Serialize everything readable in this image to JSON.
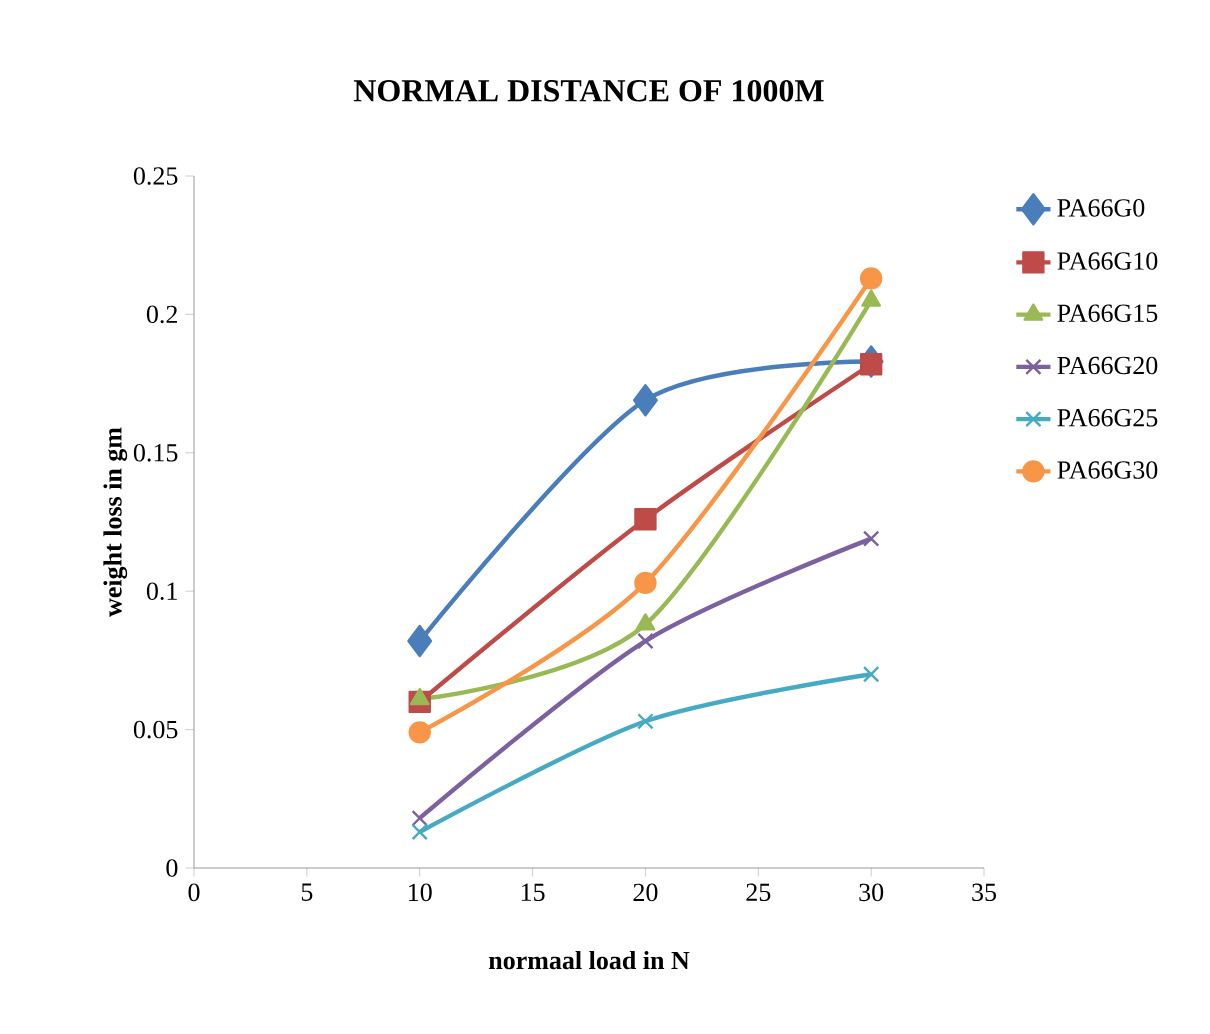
{
  "chart_data": {
    "type": "line",
    "title": "NORMAL  DISTANCE OF 1000M",
    "xlabel": "normaal load in N",
    "ylabel": "weight loss in gm",
    "x": [
      10,
      20,
      30
    ],
    "series": [
      {
        "name": "PA66G0",
        "color": "#4a7ebb",
        "marker": "diamond",
        "values": [
          0.082,
          0.169,
          0.183
        ]
      },
      {
        "name": "PA66G10",
        "color": "#be4b48",
        "marker": "square",
        "values": [
          0.06,
          0.126,
          0.182
        ]
      },
      {
        "name": "PA66G15",
        "color": "#98b954",
        "marker": "triangle",
        "values": [
          0.061,
          0.088,
          0.205
        ]
      },
      {
        "name": "PA66G20",
        "color": "#7d60a0",
        "marker": "cross",
        "values": [
          0.018,
          0.082,
          0.119
        ]
      },
      {
        "name": "PA66G25",
        "color": "#46aac5",
        "marker": "cross",
        "values": [
          0.013,
          0.053,
          0.07
        ]
      },
      {
        "name": "PA66G30",
        "color": "#f79646",
        "marker": "circle",
        "values": [
          0.049,
          0.103,
          0.213
        ]
      }
    ],
    "xlim": [
      0,
      35
    ],
    "xticks": [
      0,
      5,
      10,
      15,
      20,
      25,
      30,
      35
    ],
    "ylim": [
      0,
      0.25
    ],
    "yticks": [
      0,
      0.05,
      0.1,
      0.15,
      0.2,
      0.25
    ],
    "grid": false,
    "legend": "right",
    "line_style": "solid"
  }
}
